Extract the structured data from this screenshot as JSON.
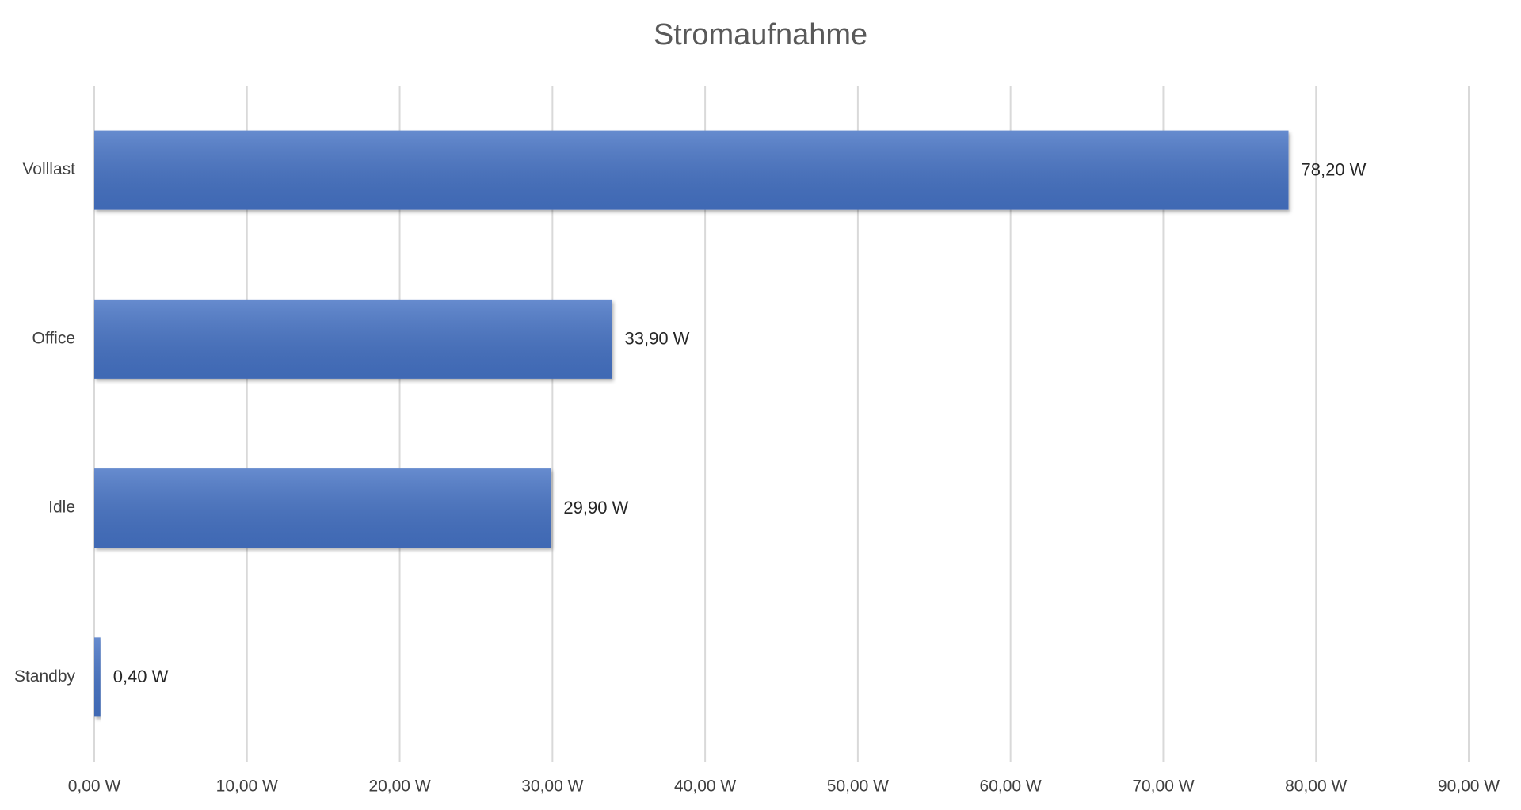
{
  "chart_data": {
    "type": "bar",
    "orientation": "horizontal",
    "title": "Stromaufnahme",
    "categories": [
      "Volllast",
      "Office",
      "Idle",
      "Standby"
    ],
    "values": [
      78.2,
      33.9,
      29.9,
      0.4
    ],
    "value_labels": [
      "78,20 W",
      "33,90 W",
      "29,90 W",
      "0,40 W"
    ],
    "color": "#4472c4",
    "xlim": [
      0,
      90
    ],
    "xticks": [
      {
        "value": 0,
        "label": "0,00 W"
      },
      {
        "value": 10,
        "label": "10,00 W"
      },
      {
        "value": 20,
        "label": "20,00 W"
      },
      {
        "value": 30,
        "label": "30,00 W"
      },
      {
        "value": 40,
        "label": "40,00 W"
      },
      {
        "value": 50,
        "label": "50,00 W"
      },
      {
        "value": 60,
        "label": "60,00 W"
      },
      {
        "value": 70,
        "label": "70,00 W"
      },
      {
        "value": 80,
        "label": "80,00 W"
      },
      {
        "value": 90,
        "label": "90,00 W"
      }
    ],
    "grid": true
  }
}
